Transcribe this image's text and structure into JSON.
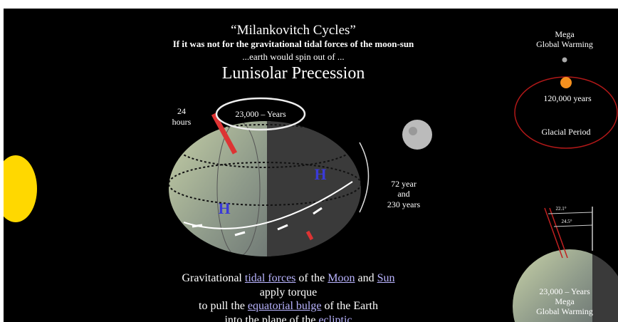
{
  "header": {
    "title": "“Milankovitch Cycles”",
    "lines": [
      "If it was not for the gravitational tidal forces of the moon-sun",
      "...earth would spin out of ..."
    ],
    "heading": "Lunisolar Precession"
  },
  "diagram": {
    "rotation": [
      "24",
      "hours"
    ],
    "precession": "23,000 – Years",
    "bulges": [
      "H",
      "H"
    ],
    "nutation": [
      "72 year",
      "and",
      "230 years"
    ]
  },
  "inset_top": {
    "top": [
      "Mega",
      "Global Warming"
    ],
    "period": "120,000 years",
    "label": "Glacial Period"
  },
  "inset_bottom": {
    "angles": [
      "22.1°",
      "24.5°"
    ],
    "lines": [
      "23,000 – Years",
      "Mega",
      "Global Warming"
    ]
  },
  "caption": {
    "lines": [
      [
        "Gravitational ",
        "tidal forces",
        " of the ",
        "Moon",
        " and ",
        "Sun"
      ],
      [
        "apply torque"
      ],
      [
        "to pull the ",
        "equatorial bulge",
        " of the Earth"
      ],
      [
        "into the plane of the ",
        "ecliptic"
      ]
    ]
  }
}
